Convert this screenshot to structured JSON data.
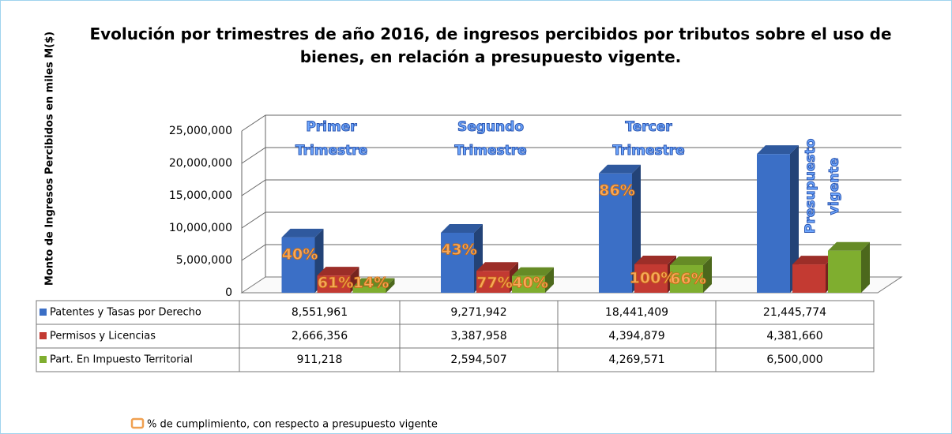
{
  "chart_data": {
    "type": "bar3d",
    "title": "Evolución por trimestres de año 2016, de ingresos percibidos por tributos sobre el uso de bienes, en relación a presupuesto vigente.",
    "y_label": "Monto de Ingresos Percibidos en miles M($)",
    "categories": [
      "Primer Trimestre",
      "Segundo Trimestre",
      "Tercer Trimestre",
      "Presupuesto vigente"
    ],
    "series": [
      {
        "name": "Patentes y Tasas por Derecho",
        "color": "#3b6fc6",
        "values": [
          8551961,
          9271942,
          18441409,
          21445774
        ],
        "value_labels": [
          "8,551,961",
          "9,271,942",
          "18,441,409",
          "21,445,774"
        ],
        "percent_labels": [
          "40%",
          "43%",
          "86%",
          null
        ]
      },
      {
        "name": "Permisos y Licencias",
        "color": "#c33a32",
        "values": [
          2666356,
          3387958,
          4394879,
          4381660
        ],
        "value_labels": [
          "2,666,356",
          "3,387,958",
          "4,394,879",
          "4,381,660"
        ],
        "percent_labels": [
          "61%",
          "77%",
          "100%",
          null
        ]
      },
      {
        "name": "Part. En Impuesto Territorial",
        "color": "#7fae2f",
        "values": [
          911218,
          2594507,
          4269571,
          6500000
        ],
        "value_labels": [
          "911,218",
          "2,594,507",
          "4,269,571",
          "6,500,000"
        ],
        "percent_labels": [
          "14%",
          "40%",
          "66%",
          null
        ]
      }
    ],
    "ylim": [
      0,
      25000000
    ],
    "yticks": [
      0,
      {
        "value": 5000000,
        "label": "5,000,000"
      },
      {
        "value": 10000000,
        "label": "10,000,000"
      },
      {
        "value": 15000000,
        "label": "15,000,000"
      },
      {
        "value": 20000000,
        "label": "20,000,000"
      },
      {
        "value": 25000000,
        "label": "25,000,000"
      }
    ],
    "grid": true,
    "note": "% de cumplimiento,  con respecto a presupuesto vigente"
  }
}
